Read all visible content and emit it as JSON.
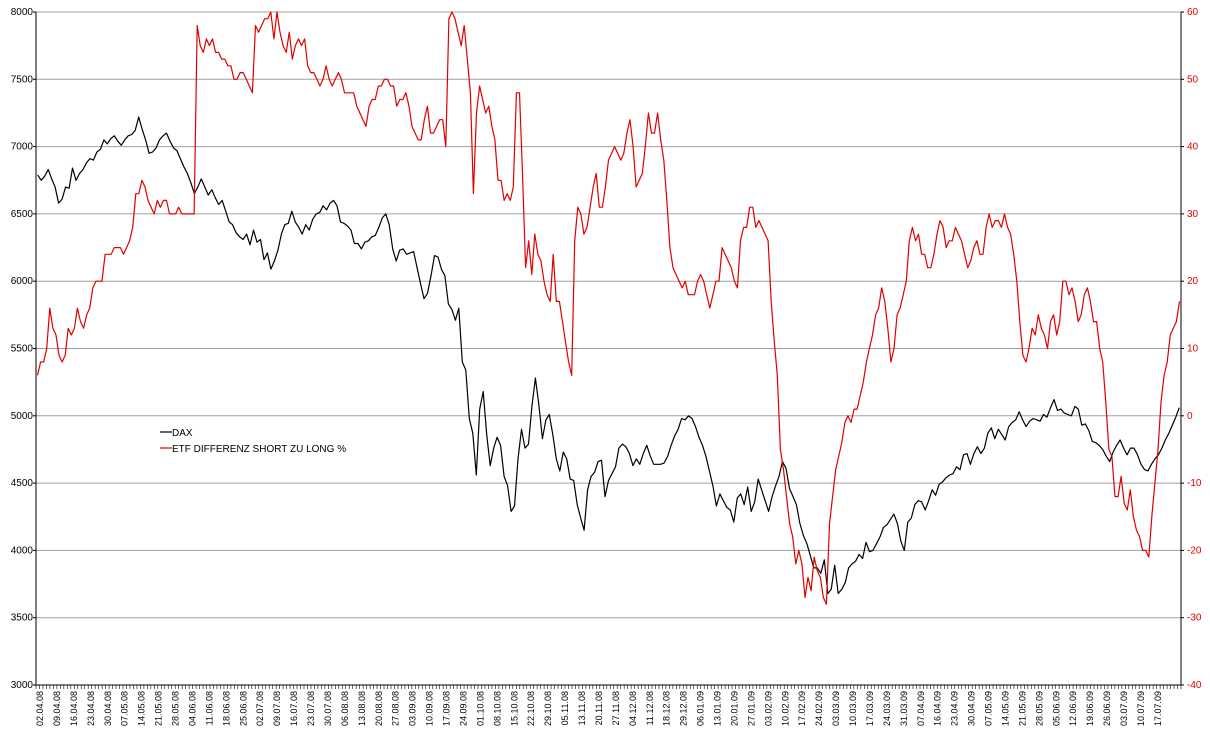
{
  "chart_data": {
    "type": "line",
    "title": "",
    "xlabel": "",
    "ylabel": "",
    "grid": true,
    "legend_position": "left-middle",
    "y_left": {
      "min": 3000,
      "max": 8000,
      "ticks": [
        "3000",
        "3500",
        "4000",
        "4500",
        "5000",
        "5500",
        "6000",
        "6500",
        "7000",
        "7500",
        "8000"
      ]
    },
    "y_right": {
      "min": -40,
      "max": 60,
      "ticks": [
        "-40",
        "-30",
        "-20",
        "-10",
        "0",
        "10",
        "20",
        "30",
        "40",
        "50",
        "60"
      ]
    },
    "x_tick_labels": [
      "02.04.08",
      "09.04.08",
      "16.04.08",
      "23.04.08",
      "30.04.08",
      "07.05.08",
      "14.05.08",
      "21.05.08",
      "28.05.08",
      "04.06.08",
      "11.06.08",
      "18.06.08",
      "25.06.08",
      "02.07.08",
      "09.07.08",
      "16.07.08",
      "23.07.08",
      "30.07.08",
      "06.08.08",
      "13.08.08",
      "20.08.08",
      "27.08.08",
      "03.09.08",
      "10.09.08",
      "17.09.08",
      "24.09.08",
      "01.10.08",
      "08.10.08",
      "15.10.08",
      "22.10.08",
      "29.10.08",
      "05.11.08",
      "13.11.08",
      "20.11.08",
      "27.11.08",
      "04.12.08",
      "11.12.08",
      "18.12.08",
      "29.12.08",
      "06.01.09",
      "13.01.09",
      "20.01.09",
      "27.01.09",
      "03.02.09",
      "10.02.09",
      "17.02.09",
      "24.02.09",
      "03.03.09",
      "10.03.09",
      "17.03.09",
      "24.03.09",
      "31.03.09",
      "07.04.09",
      "16.04.09",
      "23.04.09",
      "30.04.09",
      "07.05.09",
      "14.05.09",
      "21.05.09",
      "28.05.09",
      "05.06.09",
      "12.06.09",
      "19.06.09",
      "26.06.09",
      "03.07.09",
      "10.07.09",
      "17.07.09"
    ],
    "series": [
      {
        "name": "DAX",
        "axis": "left",
        "color": "#000000",
        "values": [
          6790,
          6750,
          6780,
          6830,
          6760,
          6700,
          6580,
          6610,
          6700,
          6690,
          6840,
          6750,
          6800,
          6830,
          6880,
          6910,
          6900,
          6960,
          6980,
          7050,
          7020,
          7060,
          7080,
          7040,
          7010,
          7050,
          7080,
          7090,
          7120,
          7220,
          7130,
          7050,
          6950,
          6960,
          6990,
          7050,
          7080,
          7100,
          7040,
          6990,
          6970,
          6910,
          6850,
          6800,
          6730,
          6650,
          6700,
          6760,
          6700,
          6640,
          6680,
          6620,
          6570,
          6600,
          6520,
          6440,
          6420,
          6360,
          6330,
          6310,
          6350,
          6270,
          6380,
          6290,
          6310,
          6160,
          6210,
          6090,
          6150,
          6230,
          6350,
          6420,
          6430,
          6520,
          6440,
          6400,
          6350,
          6420,
          6380,
          6460,
          6500,
          6510,
          6560,
          6530,
          6580,
          6600,
          6560,
          6440,
          6430,
          6410,
          6380,
          6280,
          6280,
          6240,
          6290,
          6300,
          6330,
          6340,
          6400,
          6470,
          6500,
          6420,
          6240,
          6150,
          6230,
          6240,
          6200,
          6210,
          6220,
          6100,
          5980,
          5870,
          5910,
          6040,
          6190,
          6180,
          6090,
          6040,
          5830,
          5790,
          5710,
          5800,
          5400,
          5340,
          4980,
          4870,
          4560,
          5050,
          5180,
          4860,
          4630,
          4760,
          4840,
          4780,
          4550,
          4480,
          4290,
          4330,
          4680,
          4900,
          4760,
          4790,
          5070,
          5280,
          5080,
          4830,
          4970,
          5010,
          4860,
          4680,
          4590,
          4730,
          4680,
          4530,
          4520,
          4340,
          4240,
          4150,
          4450,
          4550,
          4580,
          4660,
          4670,
          4400,
          4520,
          4570,
          4620,
          4760,
          4790,
          4770,
          4720,
          4630,
          4680,
          4640,
          4720,
          4780,
          4700,
          4640,
          4640,
          4640,
          4650,
          4700,
          4780,
          4850,
          4900,
          4980,
          4970,
          5000,
          4980,
          4920,
          4840,
          4780,
          4700,
          4590,
          4480,
          4330,
          4420,
          4370,
          4320,
          4300,
          4210,
          4390,
          4420,
          4340,
          4470,
          4290,
          4360,
          4530,
          4450,
          4370,
          4290,
          4400,
          4480,
          4550,
          4660,
          4610,
          4460,
          4400,
          4340,
          4200,
          4110,
          4050,
          3960,
          3870,
          3870,
          3830,
          3930,
          3680,
          3710,
          3890,
          3680,
          3710,
          3760,
          3870,
          3900,
          3920,
          3970,
          3940,
          4060,
          3990,
          4000,
          4050,
          4100,
          4170,
          4190,
          4230,
          4270,
          4200,
          4070,
          4000,
          4210,
          4240,
          4340,
          4370,
          4360,
          4300,
          4370,
          4450,
          4410,
          4490,
          4510,
          4540,
          4560,
          4570,
          4620,
          4600,
          4710,
          4720,
          4640,
          4720,
          4770,
          4720,
          4760,
          4870,
          4910,
          4830,
          4900,
          4860,
          4820,
          4920,
          4950,
          4970,
          5030,
          4970,
          4920,
          4960,
          4980,
          4970,
          4960,
          5010,
          4990,
          5060,
          5120,
          5040,
          5050,
          5020,
          5010,
          5000,
          5070,
          5050,
          4930,
          4940,
          4890,
          4810,
          4800,
          4780,
          4750,
          4700,
          4660,
          4730,
          4780,
          4820,
          4760,
          4710,
          4760,
          4760,
          4710,
          4640,
          4600,
          4590,
          4640,
          4680,
          4710,
          4760,
          4820,
          4870,
          4930,
          4990,
          5060
        ]
      },
      {
        "name": "ETF DIFFERENZ SHORT ZU LONG %",
        "axis": "right",
        "color": "#e00000",
        "values": [
          6,
          8,
          8,
          10,
          16,
          13,
          12,
          9,
          8,
          9,
          13,
          12,
          13,
          16,
          14,
          13,
          15,
          16,
          19,
          20,
          20,
          20,
          24,
          24,
          24,
          25,
          25,
          25,
          24,
          25,
          26,
          28,
          33,
          33,
          35,
          34,
          32,
          31,
          30,
          32,
          31,
          32,
          32,
          30,
          30,
          30,
          31,
          30,
          30,
          30,
          30,
          30,
          58,
          55,
          54,
          56,
          55,
          56,
          54,
          54,
          53,
          53,
          52,
          52,
          50,
          50,
          51,
          51,
          50,
          49,
          48,
          58,
          57,
          58,
          59,
          59,
          60,
          56,
          60,
          57,
          55,
          54,
          57,
          53,
          55,
          56,
          55,
          56,
          52,
          51,
          51,
          50,
          49,
          50,
          52,
          50,
          49,
          50,
          51,
          50,
          48,
          48,
          48,
          48,
          46,
          45,
          44,
          43,
          46,
          47,
          47,
          49,
          49,
          50,
          50,
          49,
          49,
          46,
          47,
          47,
          48,
          46,
          43,
          42,
          41,
          41,
          44,
          46,
          42,
          42,
          43,
          44,
          44,
          40,
          59,
          60,
          59,
          57,
          55,
          58,
          53,
          48,
          33,
          45,
          49,
          47,
          45,
          46,
          43,
          41,
          35,
          35,
          32,
          33,
          32,
          34,
          48,
          48,
          36,
          22,
          26,
          21,
          27,
          24,
          23,
          20,
          18,
          17,
          24,
          17,
          17,
          14,
          11,
          8,
          6,
          26,
          31,
          30,
          27,
          28,
          31,
          34,
          36,
          31,
          31,
          34,
          38,
          39,
          40,
          39,
          38,
          39,
          42,
          44,
          40,
          34,
          35,
          36,
          40,
          45,
          42,
          42,
          45,
          41,
          38,
          32,
          25,
          22,
          21,
          20,
          19,
          20,
          18,
          18,
          18,
          20,
          21,
          20,
          18,
          16,
          18,
          20,
          20,
          25,
          24,
          23,
          22,
          20,
          19,
          26,
          28,
          28,
          31,
          31,
          28,
          29,
          28,
          27,
          26,
          17,
          11,
          6,
          -5,
          -8,
          -12,
          -16,
          -18,
          -22,
          -20,
          -22,
          -27,
          -24,
          -26,
          -21,
          -23,
          -24,
          -27,
          -28,
          -16,
          -12,
          -8,
          -6,
          -4,
          -1,
          0,
          -1,
          1,
          1,
          3,
          5,
          8,
          10,
          12,
          15,
          16,
          19,
          17,
          13,
          8,
          10,
          15,
          16,
          18,
          20,
          26,
          28,
          26,
          27,
          24,
          24,
          22,
          22,
          24,
          27,
          29,
          28,
          25,
          26,
          26,
          28,
          27,
          26,
          24,
          22,
          23,
          25,
          26,
          24,
          24,
          28,
          30,
          28,
          29,
          29,
          28,
          30,
          28,
          27,
          24,
          20,
          14,
          9,
          8,
          10,
          13,
          12,
          15,
          13,
          12,
          10,
          14,
          15,
          12,
          14,
          20,
          20,
          18,
          19,
          17,
          14,
          15,
          18,
          19,
          17,
          14,
          14,
          10,
          8,
          2,
          -5,
          -6,
          -12,
          -12,
          -9,
          -13,
          -14,
          -11,
          -15,
          -17,
          -18,
          -20,
          -20,
          -21,
          -15,
          -10,
          -5,
          2,
          6,
          8,
          12,
          13,
          14,
          17
        ]
      }
    ]
  }
}
